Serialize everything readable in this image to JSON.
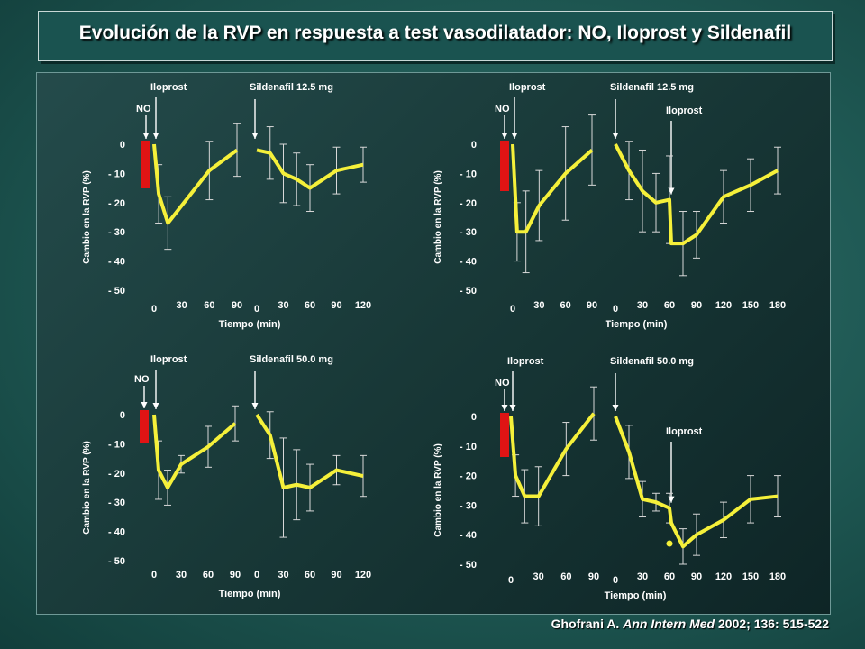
{
  "title": "Evolución de la RVP en respuesta a test vasodilatador: NO, Iloprost y Sildenafil",
  "citation": {
    "author": "Ghofrani A.",
    "journal": "Ann Intern Med",
    "details": "2002; 136: 515-522"
  },
  "colors": {
    "line": "#f5f03a",
    "no_bar": "#e01414",
    "errorbar": "#d8d8d8",
    "text": "#ffffff"
  },
  "chart_data": [
    {
      "type": "line",
      "ylabel": "Cambio en la RVP (%)",
      "xlabel": "Tiempo (min)",
      "ylim": [
        -50,
        0
      ],
      "yticks": [
        "0",
        "- 10",
        "- 20",
        "- 30",
        "- 40",
        "- 50"
      ],
      "label_no": "NO",
      "label_iloprost": "Iloprost",
      "label_sildenafil": "Sildenafil  12.5 mg",
      "segment1": {
        "xticks": [
          "0",
          "30",
          "60",
          "90"
        ],
        "x": [
          0,
          5,
          15,
          60,
          90
        ],
        "y": [
          0,
          -17,
          -27,
          -9,
          -2
        ],
        "err": [
          null,
          10,
          9,
          10,
          9
        ]
      },
      "segment2": {
        "xticks": [
          "0",
          "30",
          "60",
          "90",
          "120"
        ],
        "x": [
          0,
          15,
          30,
          45,
          60,
          90,
          120
        ],
        "y": [
          -2,
          -3,
          -10,
          -12,
          -15,
          -9,
          -7
        ],
        "err": [
          null,
          9,
          10,
          9,
          8,
          8,
          6
        ]
      }
    },
    {
      "type": "line",
      "ylabel": "Cambio en la RVP (%)",
      "xlabel": "Tiempo (min)",
      "ylim": [
        -50,
        0
      ],
      "yticks": [
        "0",
        "- 10",
        "- 20",
        "- 30",
        "- 40",
        "- 50"
      ],
      "label_no": "NO",
      "label_iloprost": "Iloprost",
      "label_sildenafil": "Sildenafil  12.5 mg",
      "label_iloprost_2": "Iloprost",
      "segment1": {
        "xticks": [
          "0",
          "30",
          "60",
          "90"
        ],
        "x": [
          0,
          5,
          15,
          30,
          60,
          90
        ],
        "y": [
          0,
          -30,
          -30,
          -21,
          -10,
          -2
        ],
        "err": [
          null,
          10,
          14,
          12,
          16,
          12
        ]
      },
      "segment2": {
        "xticks": [
          "0",
          "30",
          "60",
          "90",
          "120",
          "150",
          "180"
        ],
        "x": [
          0,
          15,
          30,
          45,
          60,
          62,
          75,
          90,
          120,
          150,
          180
        ],
        "y": [
          0,
          -9,
          -16,
          -20,
          -19,
          -34,
          -34,
          -31,
          -18,
          -14,
          -9
        ],
        "err": [
          null,
          10,
          14,
          10,
          15,
          null,
          11,
          8,
          9,
          9,
          8
        ]
      }
    },
    {
      "type": "line",
      "ylabel": "Cambio en la RVP (%)",
      "xlabel": "Tiempo (min)",
      "ylim": [
        -50,
        0
      ],
      "yticks": [
        "0",
        "- 10",
        "- 20",
        "- 30",
        "- 40",
        "- 50"
      ],
      "label_no": "NO",
      "label_iloprost": "Iloprost",
      "label_sildenafil": "Sildenafil  50.0 mg",
      "segment1": {
        "xticks": [
          "0",
          "30",
          "60",
          "90"
        ],
        "x": [
          0,
          5,
          15,
          30,
          60,
          90
        ],
        "y": [
          0,
          -19,
          -25,
          -17,
          -11,
          -3
        ],
        "err": [
          null,
          10,
          6,
          3,
          7,
          6
        ]
      },
      "segment2": {
        "xticks": [
          "0",
          "30",
          "60",
          "90",
          "120"
        ],
        "x": [
          0,
          15,
          30,
          45,
          60,
          90,
          120
        ],
        "y": [
          0,
          -7,
          -25,
          -24,
          -25,
          -19,
          -21
        ],
        "err": [
          null,
          8,
          17,
          12,
          8,
          5,
          7
        ]
      }
    },
    {
      "type": "line",
      "ylabel": "Cambio en la RVP (%)",
      "xlabel": "Tiempo (min)",
      "ylim": [
        -50,
        0
      ],
      "yticks": [
        "0",
        "- 10",
        "- 20",
        "- 30",
        "- 40",
        "- 50"
      ],
      "label_no": "NO",
      "label_iloprost": "Iloprost",
      "label_sildenafil": "Sildenafil  50.0 mg",
      "label_iloprost_2": "Iloprost",
      "segment1": {
        "xticks": [
          "0",
          "30",
          "60",
          "90"
        ],
        "x": [
          0,
          5,
          15,
          30,
          60,
          90
        ],
        "y": [
          0,
          -20,
          -27,
          -27,
          -11,
          1
        ],
        "err": [
          null,
          7,
          9,
          10,
          9,
          9
        ]
      },
      "segment2": {
        "xticks": [
          "0",
          "30",
          "60",
          "90",
          "120",
          "150",
          "180"
        ],
        "x": [
          0,
          15,
          30,
          45,
          60,
          62,
          75,
          90,
          120,
          150,
          180
        ],
        "y": [
          0,
          -12,
          -28,
          -29,
          -31,
          -36,
          -44,
          -40,
          -35,
          -28,
          -27
        ],
        "err": [
          null,
          9,
          6,
          3,
          5,
          null,
          6,
          7,
          6,
          8,
          7
        ],
        "dot": {
          "x": 60,
          "y": -43
        }
      }
    }
  ]
}
